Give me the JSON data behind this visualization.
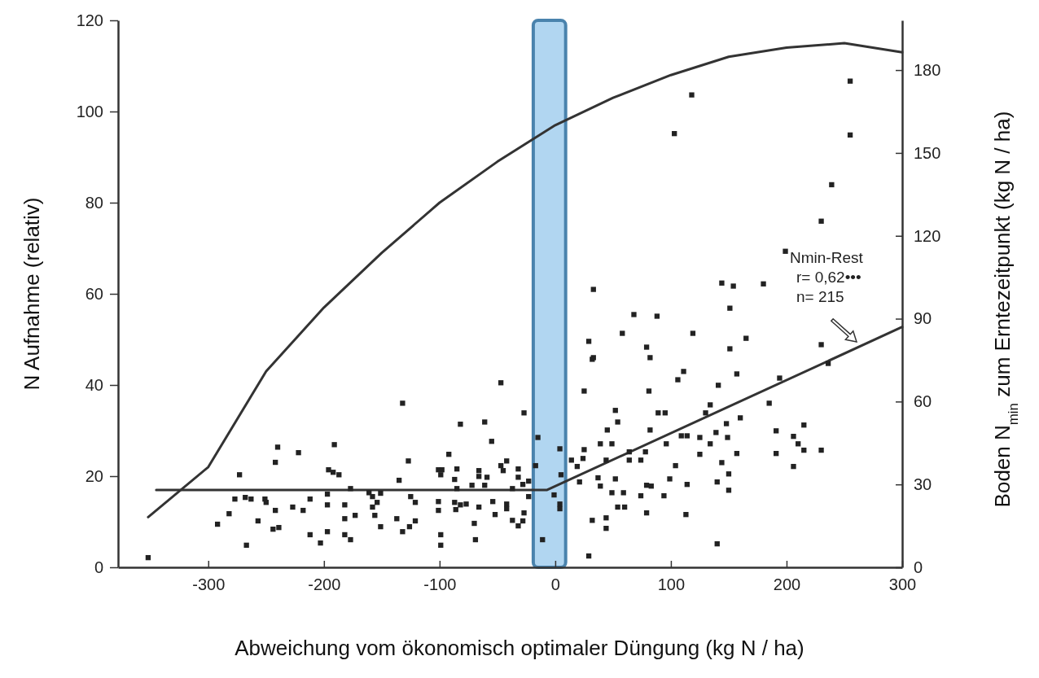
{
  "chart_data": {
    "type": "scatter",
    "xlabel": "Abweichung vom ökonomisch optimaler Düngung (kg N / ha)",
    "ylabel": "N Aufnahme (relativ)",
    "y2label": "Boden N$_{min}$ zum Erntezeitpunkt (kg N / ha)",
    "xlim": [
      -378,
      300
    ],
    "xticks": [
      -300,
      -200,
      -100,
      0,
      100,
      200,
      300
    ],
    "ylim": [
      0,
      120
    ],
    "yticks": [
      0,
      20,
      40,
      60,
      80,
      100,
      120
    ],
    "y2lim": [
      0,
      198
    ],
    "y2ticks": [
      0,
      30,
      60,
      90,
      120,
      150,
      180
    ],
    "grid": false,
    "bands": [
      {
        "axis": "x",
        "from": -19,
        "to": 9,
        "color": "#a9d2ef"
      }
    ],
    "annotations": [
      "Nmin-Rest",
      "r= 0,62•••",
      "n= 215"
    ],
    "series": [
      {
        "type": "line",
        "color": "#333333",
        "marker": "none",
        "line_style": "solid",
        "x": [
          -352,
          -300,
          -250,
          -200,
          -150,
          -100,
          -50,
          0,
          50,
          100,
          150,
          200,
          250,
          300
        ],
        "values": [
          11,
          22,
          43,
          57,
          69,
          80,
          89,
          97,
          103,
          108,
          112,
          114,
          115,
          113
        ]
      },
      {
        "type": "line",
        "axis": "y2",
        "color": "#333333",
        "marker": "none",
        "line_style": "solid",
        "x": [
          -345,
          -7,
          300
        ],
        "values": [
          28,
          28,
          87
        ]
      },
      {
        "axis": "y2",
        "color": "#222222",
        "marker": "square",
        "x": [
          -352,
          -292,
          -282,
          -267,
          -273,
          -277,
          -268,
          -263,
          -257,
          -251,
          -250,
          -242,
          -240,
          -242,
          -244,
          -239,
          -222,
          -227,
          -218,
          -212,
          -212,
          -203,
          -197,
          -197,
          -197,
          -196,
          -192,
          -187,
          -191,
          -182,
          -182,
          -182,
          -177,
          -173,
          -177,
          -161,
          -158,
          -154,
          -151,
          -158,
          -156,
          -151,
          -137,
          -132,
          -126,
          -135,
          -127,
          -132,
          -125,
          -121,
          -121,
          -101,
          -98,
          -99,
          -101,
          -101,
          -99,
          -99,
          -92,
          -87,
          -85,
          -85,
          -87,
          -86,
          -82,
          -77,
          -82,
          -72,
          -66,
          -66,
          -66,
          -61,
          -59,
          -61,
          -70,
          -69,
          -55,
          -54,
          -52,
          -47,
          -47,
          -45,
          -42,
          -42,
          -42,
          -37,
          -37,
          -32,
          -28,
          -27,
          -32,
          -32,
          -28,
          -27,
          -23,
          -23,
          -15,
          -17,
          -11,
          -1,
          4,
          5,
          4,
          4,
          14,
          19,
          24,
          25,
          21,
          25,
          32,
          32,
          29,
          33,
          29,
          33,
          52,
          54,
          45,
          39,
          49,
          44,
          37,
          39,
          52,
          49,
          59,
          54,
          60,
          44,
          44,
          68,
          88,
          58,
          79,
          82,
          81,
          89,
          95,
          82,
          64,
          64,
          74,
          78,
          96,
          104,
          99,
          79,
          83,
          74,
          94,
          79,
          113,
          114,
          119,
          106,
          111,
          109,
          114,
          125,
          125,
          130,
          134,
          134,
          139,
          141,
          140,
          140,
          144,
          148,
          149,
          150,
          150,
          144,
          154,
          151,
          151,
          157,
          157,
          160,
          165,
          255,
          255,
          239,
          230,
          199,
          180,
          230,
          236,
          194,
          185,
          191,
          215,
          206,
          210,
          215,
          230,
          191,
          206,
          118,
          103
        ],
        "values": [
          3.5,
          15.6,
          19.4,
          8,
          33.5,
          24.7,
          25.3,
          24.7,
          16.8,
          24.7,
          23.5,
          38,
          43.5,
          20.6,
          13.8,
          14.4,
          41.5,
          21.8,
          20.6,
          24.7,
          11.8,
          8.8,
          26.5,
          22.6,
          12.9,
          35.3,
          34.4,
          33.5,
          44.4,
          22.6,
          17.6,
          11.8,
          10,
          18.8,
          28.5,
          27,
          25.6,
          23.5,
          26.8,
          21.8,
          18.8,
          14.7,
          17.6,
          12.9,
          14.7,
          31.5,
          38.5,
          59.4,
          25.6,
          23.5,
          16.8,
          35.3,
          35.3,
          33.5,
          23.8,
          20.6,
          11.8,
          8,
          40.9,
          31.8,
          35.6,
          28.5,
          23.5,
          20.9,
          22.6,
          22.9,
          51.8,
          29.7,
          35,
          32.9,
          21.8,
          29.7,
          32.6,
          52.6,
          15.9,
          10,
          45.6,
          23.8,
          19.1,
          66.8,
          36.8,
          35,
          38.5,
          22.9,
          21.2,
          28.5,
          17,
          15,
          16.8,
          19.7,
          35.6,
          32.6,
          30,
          55.9,
          31.2,
          25.6,
          47,
          36.8,
          10,
          26.2,
          42.9,
          33.5,
          22.9,
          21.2,
          38.8,
          36.5,
          39.4,
          42.6,
          30.9,
          63.8,
          75.3,
          17,
          4.1,
          100.6,
          81.8,
          75.9,
          56.8,
          52.6,
          49.7,
          44.7,
          44.7,
          38.8,
          32.4,
          29.4,
          32,
          27,
          27,
          21.8,
          21.8,
          17.9,
          14.1,
          91.5,
          90.9,
          84.7,
          79.7,
          75.9,
          63.8,
          55.9,
          55.9,
          49.7,
          41.8,
          38.8,
          38.8,
          41.8,
          44.7,
          36.8,
          32,
          29.7,
          29.4,
          25.9,
          25.9,
          19.7,
          19.1,
          30,
          84.7,
          67.9,
          70.9,
          47.6,
          47.6,
          47,
          40.9,
          55.9,
          58.8,
          44.7,
          48.8,
          65.9,
          30.9,
          8.5,
          37.9,
          52,
          47,
          33.8,
          27.9,
          102.9,
          101.8,
          93.8,
          79.1,
          70,
          41.2,
          54.1,
          82.9,
          176,
          156.5,
          138.5,
          125.3,
          114.4,
          102.6,
          80.6,
          73.8,
          68.5,
          59.4,
          49.4,
          51.5,
          47.4,
          44.7,
          42.4,
          42.4,
          41.2,
          36.5,
          171,
          157
        ]
      }
    ]
  }
}
